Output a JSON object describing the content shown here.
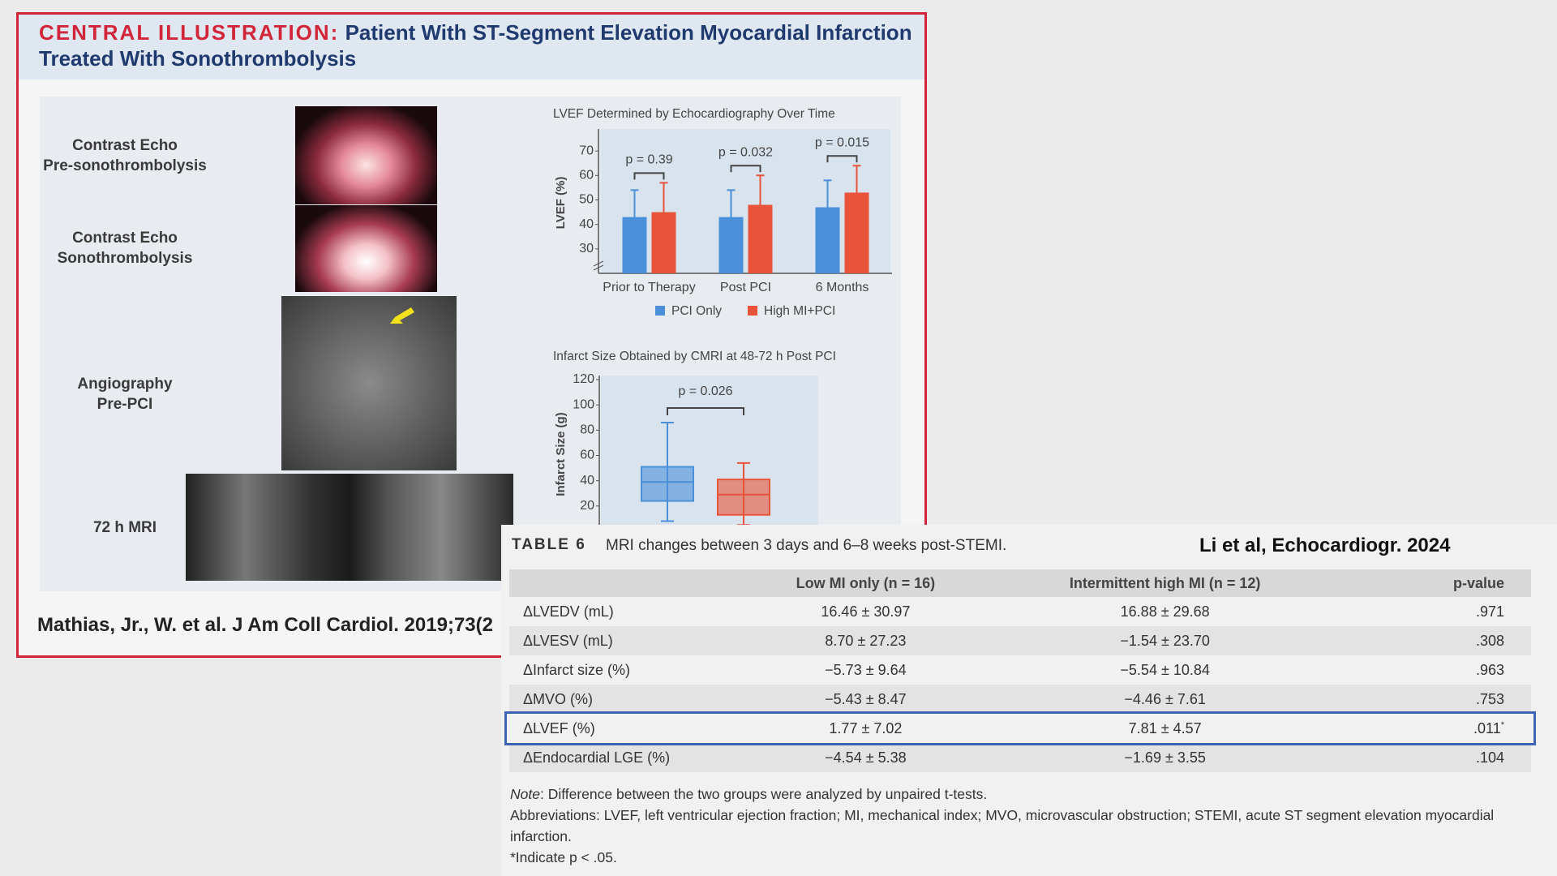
{
  "illustration": {
    "label": "CENTRAL ILLUSTRATION:",
    "title": "Patient With ST-Segment Elevation Myocardial Infarction Treated With Sonothrombolysis",
    "panels": [
      [
        "Contrast Echo",
        "Pre-sonothrombolysis"
      ],
      [
        "Contrast Echo",
        "Sonothrombolysis"
      ],
      [
        "Angiography",
        "Pre-PCI"
      ],
      [
        "72 h MRI"
      ]
    ],
    "citation": "Mathias, Jr., W. et al. J Am Coll Cardiol. 2019;73(2"
  },
  "chart_data": [
    {
      "type": "bar",
      "title": "LVEF Determined by Echocardiography Over Time",
      "y_label": "LVEF (%)",
      "categories": [
        "Prior to Therapy",
        "Post PCI",
        "6 Months"
      ],
      "series": [
        {
          "name": "PCI Only",
          "color": "#4a90d9",
          "values": [
            43,
            43,
            47
          ],
          "errors": [
            11,
            11,
            11
          ]
        },
        {
          "name": "High MI+PCI",
          "color": "#e8533a",
          "values": [
            45,
            48,
            53
          ],
          "errors": [
            12,
            12,
            11
          ]
        }
      ],
      "annotations": [
        "p = 0.39",
        "p = 0.032",
        "p = 0.015"
      ],
      "ylim": [
        20,
        78
      ],
      "yticks": [
        30,
        40,
        50,
        60,
        70
      ],
      "legend": "bottom"
    },
    {
      "type": "box",
      "title": "Infarct Size Obtained by CMRI at 48-72 h Post PCI",
      "y_label": "Infarct Size (g)",
      "boxes": [
        {
          "color": "#4a90d9",
          "min": 8,
          "q1": 24,
          "median": 39,
          "q3": 51,
          "max": 86
        },
        {
          "color": "#e8533a",
          "min": 5,
          "q1": 13,
          "median": 29,
          "q3": 41,
          "max": 54
        }
      ],
      "annotations": [
        "p = 0.026"
      ],
      "ylim": [
        0,
        120
      ],
      "yticks": [
        20,
        40,
        60,
        80,
        100,
        120
      ]
    }
  ],
  "source": "Li et al, Echocardiogr. 2024",
  "table": {
    "label": "TABLE 6",
    "caption": "MRI changes between 3 days and 6–8 weeks post-STEMI.",
    "columns": [
      "Low MI only (n = 16)",
      "Intermittent high MI (n = 12)",
      "p-value"
    ],
    "rows": [
      [
        "ΔLVEDV (mL)",
        "16.46 ± 30.97",
        "16.88 ± 29.68",
        ".971"
      ],
      [
        "ΔLVESV (mL)",
        "8.70 ± 27.23",
        "−1.54 ± 23.70",
        ".308"
      ],
      [
        "ΔInfarct size (%)",
        "−5.73 ± 9.64",
        "−5.54 ± 10.84",
        ".963"
      ],
      [
        "ΔMVO (%)",
        "−5.43 ± 8.47",
        "−4.46 ± 7.61",
        ".753"
      ],
      [
        "ΔLVEF (%)",
        "1.77 ± 7.02",
        "7.81 ± 4.57",
        ".011"
      ],
      [
        "ΔEndocardial LGE (%)",
        "−4.54 ± 5.38",
        "−1.69 ± 3.55",
        ".104"
      ]
    ],
    "highlight_row": 4,
    "significance_mark": "*",
    "note_label": "Note",
    "note": ": Difference between the two groups were analyzed by unpaired t-tests.",
    "abbreviations": "Abbreviations: LVEF, left ventricular ejection fraction; MI, mechanical index; MVO, microvascular obstruction; STEMI, acute ST segment elevation myocardial infarction.",
    "footnote": "*Indicate p < .05."
  }
}
